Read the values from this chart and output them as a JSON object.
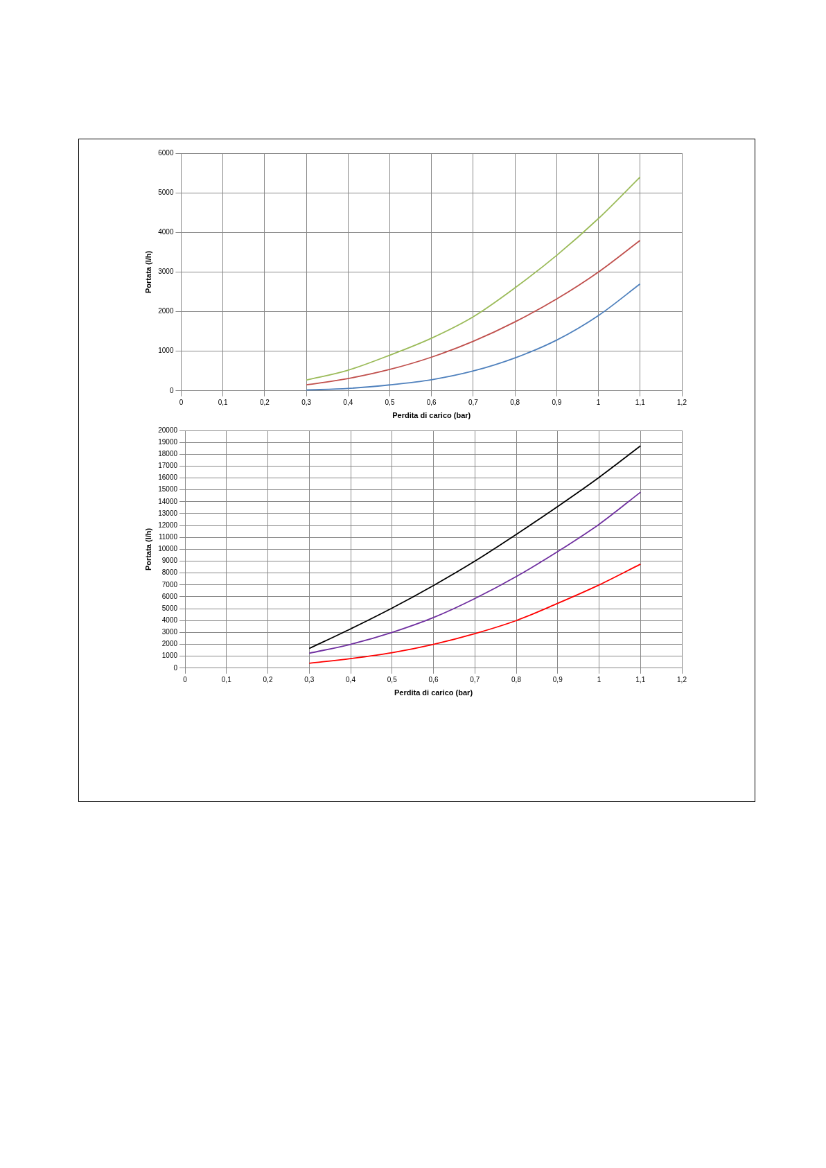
{
  "chart_data": [
    {
      "type": "line",
      "xlabel": "Perdita di carico (bar)",
      "ylabel": "Portata (l/h)",
      "x": [
        0.3,
        0.4,
        0.5,
        0.6,
        0.7,
        0.8,
        0.9,
        1.0,
        1.1
      ],
      "series": [
        {
          "color": "#9bbb59",
          "values": [
            270,
            520,
            900,
            1330,
            1870,
            2600,
            3420,
            4350,
            5400
          ]
        },
        {
          "color": "#c0504d",
          "values": [
            150,
            310,
            540,
            850,
            1250,
            1740,
            2320,
            3000,
            3800
          ]
        },
        {
          "color": "#4f81bd",
          "values": [
            20,
            60,
            150,
            280,
            500,
            830,
            1280,
            1900,
            2700
          ]
        }
      ],
      "xlim": [
        0,
        1.2
      ],
      "xticks": [
        {
          "value": 0,
          "label": "0"
        },
        {
          "value": 0.1,
          "label": "0,1"
        },
        {
          "value": 0.2,
          "label": "0,2"
        },
        {
          "value": 0.3,
          "label": "0,3"
        },
        {
          "value": 0.4,
          "label": "0,4"
        },
        {
          "value": 0.5,
          "label": "0,5"
        },
        {
          "value": 0.6,
          "label": "0,6"
        },
        {
          "value": 0.7,
          "label": "0,7"
        },
        {
          "value": 0.8,
          "label": "0,8"
        },
        {
          "value": 0.9,
          "label": "0,9"
        },
        {
          "value": 1,
          "label": "1"
        },
        {
          "value": 1.1,
          "label": "1,1"
        },
        {
          "value": 1.2,
          "label": "1,2"
        }
      ],
      "ylim": [
        0,
        6000
      ],
      "yticks": [
        0,
        1000,
        2000,
        3000,
        4000,
        5000,
        6000
      ],
      "grid": true,
      "legend": false,
      "marker": "none",
      "line_style": "solid"
    },
    {
      "type": "line",
      "xlabel": "Perdita di carico (bar)",
      "ylabel": "Portata (l/h)",
      "x": [
        0.3,
        0.4,
        0.5,
        0.6,
        0.7,
        0.8,
        0.9,
        1.0,
        1.1
      ],
      "series": [
        {
          "color": "#000000",
          "values": [
            1650,
            3300,
            5050,
            6950,
            9000,
            11250,
            13600,
            16050,
            18700
          ]
        },
        {
          "color": "#7030a0",
          "values": [
            1250,
            2000,
            3000,
            4250,
            5850,
            7700,
            9800,
            12100,
            14800
          ]
        },
        {
          "color": "#ff0000",
          "values": [
            400,
            800,
            1300,
            2000,
            2900,
            4000,
            5450,
            7000,
            8750
          ]
        }
      ],
      "xlim": [
        0,
        1.2
      ],
      "xticks": [
        {
          "value": 0,
          "label": "0"
        },
        {
          "value": 0.1,
          "label": "0,1"
        },
        {
          "value": 0.2,
          "label": "0,2"
        },
        {
          "value": 0.3,
          "label": "0,3"
        },
        {
          "value": 0.4,
          "label": "0,4"
        },
        {
          "value": 0.5,
          "label": "0,5"
        },
        {
          "value": 0.6,
          "label": "0,6"
        },
        {
          "value": 0.7,
          "label": "0,7"
        },
        {
          "value": 0.8,
          "label": "0,8"
        },
        {
          "value": 0.9,
          "label": "0,9"
        },
        {
          "value": 1,
          "label": "1"
        },
        {
          "value": 1.1,
          "label": "1,1"
        },
        {
          "value": 1.2,
          "label": "1,2"
        }
      ],
      "ylim": [
        0,
        20000
      ],
      "yticks": [
        0,
        1000,
        2000,
        3000,
        4000,
        5000,
        6000,
        7000,
        8000,
        9000,
        10000,
        11000,
        12000,
        13000,
        14000,
        15000,
        16000,
        17000,
        18000,
        19000,
        20000
      ],
      "grid": true,
      "legend": false,
      "marker": "none",
      "line_style": "solid"
    }
  ]
}
